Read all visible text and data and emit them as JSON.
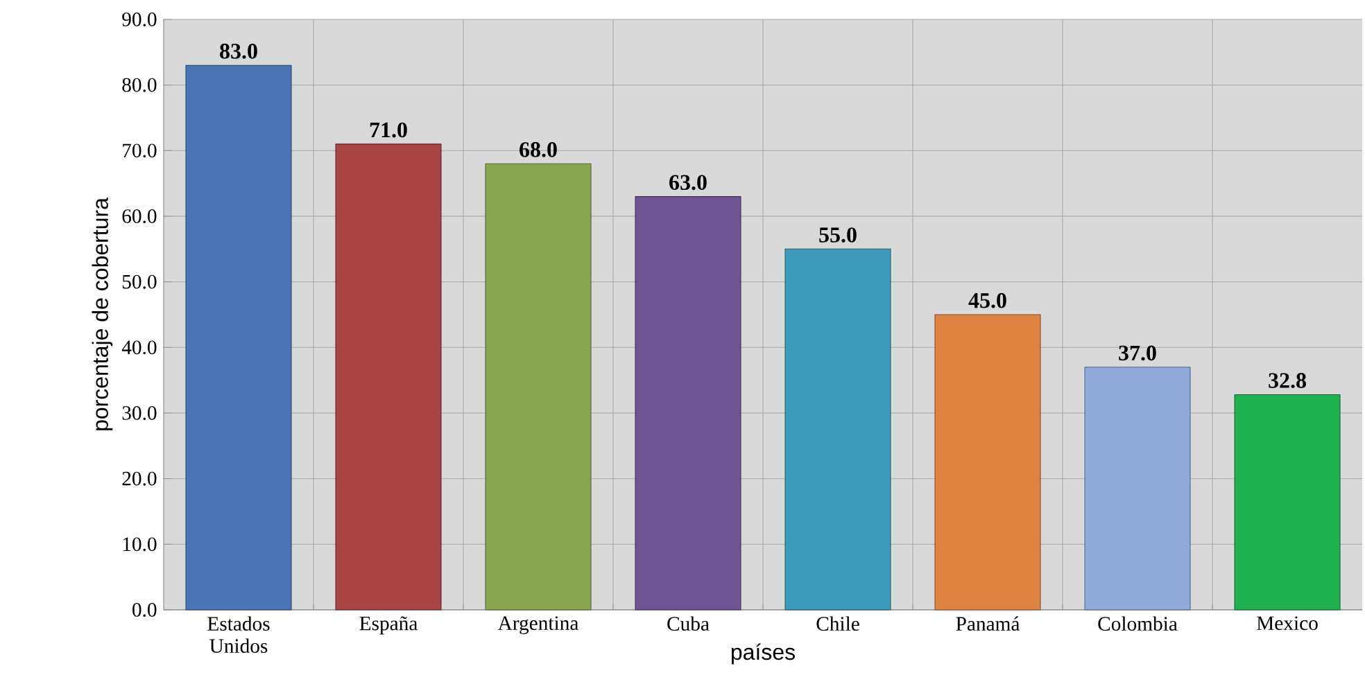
{
  "chart_data": {
    "type": "bar",
    "xlabel": "países",
    "ylabel": "porcentaje de cobertura",
    "categories": [
      "Estados Unidos",
      "España",
      "Argentina",
      "Cuba",
      "Chile",
      "Panamá",
      "Colombia",
      "Mexico"
    ],
    "values": [
      83.0,
      71.0,
      68.0,
      63.0,
      55.0,
      45.0,
      37.0,
      32.8
    ],
    "value_labels": [
      "83.0",
      "71.0",
      "68.0",
      "63.0",
      "55.0",
      "45.0",
      "37.0",
      "32.8"
    ],
    "colors": [
      "#4a74b3",
      "#a94545",
      "#88a651",
      "#6f5595",
      "#3e9abb",
      "#de8342",
      "#8fa9db",
      "#1fb050"
    ],
    "ylim": [
      0,
      90
    ],
    "yticks": [
      {
        "value": 0,
        "label": "0.0"
      },
      {
        "value": 10,
        "label": "10.0"
      },
      {
        "value": 20,
        "label": "20.0"
      },
      {
        "value": 30,
        "label": "30.0"
      },
      {
        "value": 40,
        "label": "40.0"
      },
      {
        "value": 50,
        "label": "50.0"
      },
      {
        "value": 60,
        "label": "60.0"
      },
      {
        "value": 70,
        "label": "70.0"
      },
      {
        "value": 80,
        "label": "80.0"
      },
      {
        "value": 90,
        "label": "90.0"
      }
    ],
    "grid": true
  }
}
